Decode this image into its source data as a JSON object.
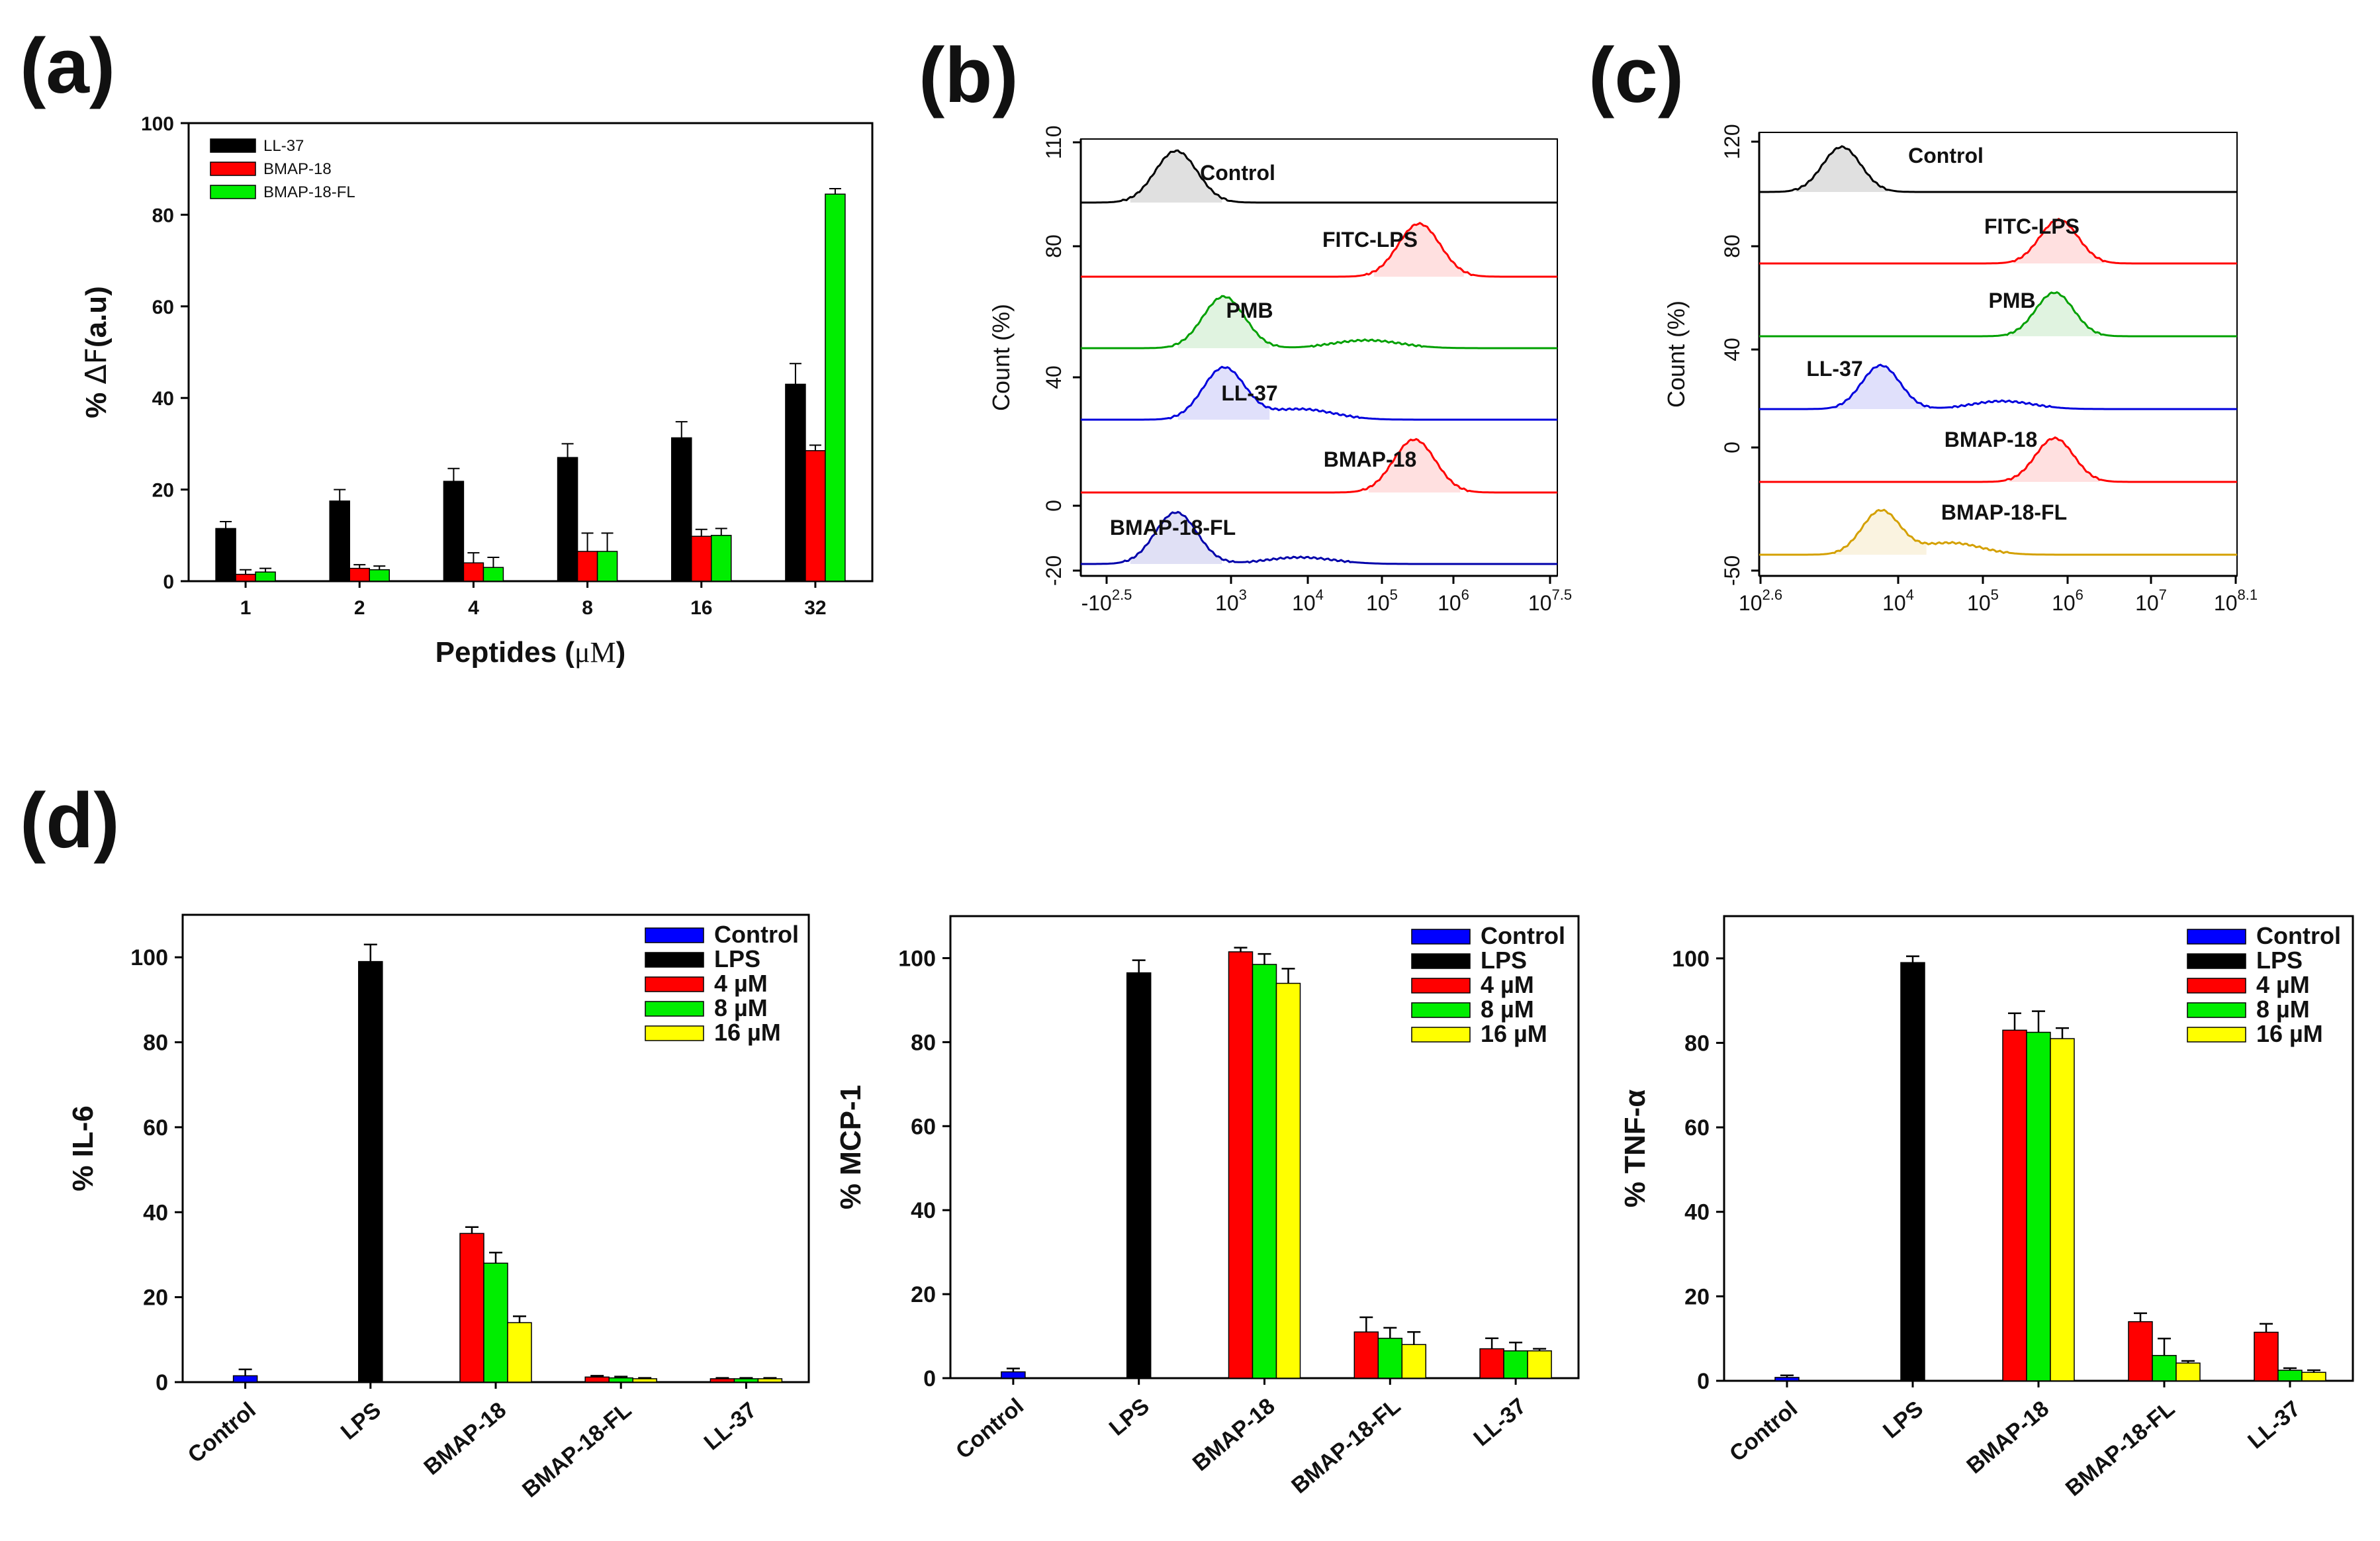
{
  "panel_labels": {
    "a": "(a)",
    "b": "(b)",
    "c": "(c)",
    "d": "(d)"
  },
  "chart_data": [
    {
      "panel": "(a)",
      "type": "bar",
      "xlabel_prefix": "Peptides (",
      "xlabel_mu": "μM",
      "xlabel_suffix": ")",
      "ylabel_prefix": "% ",
      "ylabel_delta": "ΔF",
      "ylabel_suffix": "(a.u)",
      "ylim": [
        0,
        100
      ],
      "yticks": [
        "0",
        "20",
        "40",
        "60",
        "80",
        "100"
      ],
      "categories": [
        "1",
        "2",
        "4",
        "8",
        "16",
        "32"
      ],
      "legend_position": "top-left",
      "series": [
        {
          "name": "LL-37",
          "color": "#000000",
          "values": [
            11.5,
            17.5,
            21.8,
            27,
            31.3,
            43
          ],
          "errors": [
            1.5,
            2.5,
            2.8,
            3,
            3.5,
            4.5
          ]
        },
        {
          "name": "BMAP-18",
          "color": "#ff0000",
          "values": [
            1.5,
            2.8,
            4.0,
            6.5,
            9.8,
            28.5
          ],
          "errors": [
            1.0,
            0.8,
            2.2,
            4.0,
            1.5,
            1.2
          ]
        },
        {
          "name": "BMAP-18-FL",
          "color": "#00ee00",
          "values": [
            2.0,
            2.5,
            3.0,
            6.5,
            10.0,
            84.5
          ],
          "errors": [
            0.8,
            0.8,
            2.2,
            4.0,
            1.5,
            1.2
          ]
        }
      ]
    },
    {
      "panel": "(b)",
      "type": "histogram",
      "ylabel": "Count  (%)",
      "yticks": [
        "-20",
        "0",
        "40",
        "80",
        "110"
      ],
      "xticks": [
        {
          "base": "-10",
          "exp": "2.5"
        },
        {
          "base": "10",
          "exp": "3"
        },
        {
          "base": "10",
          "exp": "4"
        },
        {
          "base": "10",
          "exp": "5"
        },
        {
          "base": "10",
          "exp": "6"
        },
        {
          "base": "10",
          "exp": "7.5"
        }
      ],
      "traces": [
        {
          "label": "Control",
          "color": "#000000",
          "peak_log_x": 3.5
        },
        {
          "label": "FITC-LPS",
          "color": "#ff0000",
          "peak_log_x": 6.05
        },
        {
          "label": "PMB",
          "color": "#00a000",
          "peak_log_x": 4.0
        },
        {
          "label": "LL-37",
          "color": "#0000dd",
          "peak_log_x": 4.0
        },
        {
          "label": "BMAP-18",
          "color": "#ff0000",
          "peak_log_x": 6.0
        },
        {
          "label": "BMAP-18-FL",
          "color": "#0000aa",
          "peak_log_x": 3.5
        }
      ]
    },
    {
      "panel": "(c)",
      "type": "histogram",
      "ylabel": "Count  (%)",
      "yticks": [
        "-50",
        "0",
        "40",
        "80",
        "120"
      ],
      "xticks": [
        {
          "base": "10",
          "exp": "2.6"
        },
        {
          "base": "10",
          "exp": "4"
        },
        {
          "base": "10",
          "exp": "5"
        },
        {
          "base": "10",
          "exp": "6"
        },
        {
          "base": "10",
          "exp": "7"
        },
        {
          "base": "10",
          "exp": "8.1"
        }
      ],
      "traces": [
        {
          "label": "Control",
          "color": "#000000",
          "peak_log_x": 3.55
        },
        {
          "label": "FITC-LPS",
          "color": "#ff0000",
          "peak_log_x": 6.05
        },
        {
          "label": "PMB",
          "color": "#00a000",
          "peak_log_x": 6.0
        },
        {
          "label": "LL-37",
          "color": "#0000dd",
          "peak_log_x": 4.0
        },
        {
          "label": "BMAP-18",
          "color": "#ff0000",
          "peak_log_x": 6.0
        },
        {
          "label": "BMAP-18-FL",
          "color": "#d4a000",
          "peak_log_x": 4.0
        }
      ]
    },
    {
      "panel": "(d)",
      "type": "bar",
      "ylabel": "% IL-6",
      "ylim": [
        0,
        110
      ],
      "yticks": [
        "0",
        "20",
        "40",
        "60",
        "80",
        "100"
      ],
      "categories": [
        "Control",
        "LPS",
        "BMAP-18",
        "BMAP-18-FL",
        "LL-37"
      ],
      "legend_position": "top-right",
      "legend": [
        "Control",
        "LPS",
        "4 µM",
        "8 µM",
        "16 µM"
      ],
      "colors": {
        "Control": "#0000ff",
        "LPS": "#000000",
        "4 µM": "#ff0000",
        "8 µM": "#00ee00",
        "16 µM": "#ffff00"
      },
      "bars": [
        {
          "category": "Control",
          "series": "Control",
          "value": 1.5,
          "error": 1.5
        },
        {
          "category": "LPS",
          "series": "LPS",
          "value": 99,
          "error": 4
        },
        {
          "category": "BMAP-18",
          "series": "4 µM",
          "value": 35,
          "error": 1.5
        },
        {
          "category": "BMAP-18",
          "series": "8 µM",
          "value": 28,
          "error": 2.5
        },
        {
          "category": "BMAP-18",
          "series": "16 µM",
          "value": 14,
          "error": 1.5
        },
        {
          "category": "BMAP-18-FL",
          "series": "4 µM",
          "value": 1.2,
          "error": 0.3
        },
        {
          "category": "BMAP-18-FL",
          "series": "8 µM",
          "value": 1.0,
          "error": 0.3
        },
        {
          "category": "BMAP-18-FL",
          "series": "16 µM",
          "value": 0.8,
          "error": 0.2
        },
        {
          "category": "LL-37",
          "series": "4 µM",
          "value": 0.8,
          "error": 0.2
        },
        {
          "category": "LL-37",
          "series": "8 µM",
          "value": 0.8,
          "error": 0.2
        },
        {
          "category": "LL-37",
          "series": "16 µM",
          "value": 0.8,
          "error": 0.2
        }
      ]
    },
    {
      "panel": "(d)",
      "type": "bar",
      "ylabel": "% MCP-1",
      "ylim": [
        0,
        110
      ],
      "yticks": [
        "0",
        "20",
        "40",
        "60",
        "80",
        "100"
      ],
      "categories": [
        "Control",
        "LPS",
        "BMAP-18",
        "BMAP-18-FL",
        "LL-37"
      ],
      "legend_position": "top-right",
      "legend": [
        "Control",
        "LPS",
        "4 µM",
        "8 µM",
        "16 µM"
      ],
      "colors": {
        "Control": "#0000ff",
        "LPS": "#000000",
        "4 µM": "#ff0000",
        "8 µM": "#00ee00",
        "16 µM": "#ffff00"
      },
      "bars": [
        {
          "category": "Control",
          "series": "Control",
          "value": 1.5,
          "error": 0.8
        },
        {
          "category": "LPS",
          "series": "LPS",
          "value": 96.5,
          "error": 3
        },
        {
          "category": "BMAP-18",
          "series": "4 µM",
          "value": 101.5,
          "error": 1
        },
        {
          "category": "BMAP-18",
          "series": "8 µM",
          "value": 98.5,
          "error": 2.5
        },
        {
          "category": "BMAP-18",
          "series": "16 µM",
          "value": 94,
          "error": 3.5
        },
        {
          "category": "BMAP-18-FL",
          "series": "4 µM",
          "value": 11,
          "error": 3.5
        },
        {
          "category": "BMAP-18-FL",
          "series": "8 µM",
          "value": 9.5,
          "error": 2.5
        },
        {
          "category": "BMAP-18-FL",
          "series": "16 µM",
          "value": 8,
          "error": 3
        },
        {
          "category": "LL-37",
          "series": "4 µM",
          "value": 7,
          "error": 2.5
        },
        {
          "category": "LL-37",
          "series": "8 µM",
          "value": 6.5,
          "error": 2
        },
        {
          "category": "LL-37",
          "series": "16 µM",
          "value": 6.5,
          "error": 0.5
        }
      ]
    },
    {
      "panel": "(d)",
      "type": "bar",
      "ylabel": "% TNF-α",
      "ylim": [
        0,
        110
      ],
      "yticks": [
        "0",
        "20",
        "40",
        "60",
        "80",
        "100"
      ],
      "categories": [
        "Control",
        "LPS",
        "BMAP-18",
        "BMAP-18-FL",
        "LL-37"
      ],
      "legend_position": "top-right",
      "legend": [
        "Control",
        "LPS",
        "4 µM",
        "8 µM",
        "16 µM"
      ],
      "colors": {
        "Control": "#0000ff",
        "LPS": "#000000",
        "4 µM": "#ff0000",
        "8 µM": "#00ee00",
        "16 µM": "#ffff00"
      },
      "bars": [
        {
          "category": "Control",
          "series": "Control",
          "value": 0.8,
          "error": 0.5
        },
        {
          "category": "LPS",
          "series": "LPS",
          "value": 99,
          "error": 1.5
        },
        {
          "category": "BMAP-18",
          "series": "4 µM",
          "value": 83,
          "error": 4
        },
        {
          "category": "BMAP-18",
          "series": "8 µM",
          "value": 82.5,
          "error": 5
        },
        {
          "category": "BMAP-18",
          "series": "16 µM",
          "value": 81,
          "error": 2.5
        },
        {
          "category": "BMAP-18-FL",
          "series": "4 µM",
          "value": 14,
          "error": 2
        },
        {
          "category": "BMAP-18-FL",
          "series": "8 µM",
          "value": 6,
          "error": 4
        },
        {
          "category": "BMAP-18-FL",
          "series": "16 µM",
          "value": 4.2,
          "error": 0.5
        },
        {
          "category": "LL-37",
          "series": "4 µM",
          "value": 11.5,
          "error": 2
        },
        {
          "category": "LL-37",
          "series": "8 µM",
          "value": 2.5,
          "error": 0.5
        },
        {
          "category": "LL-37",
          "series": "16 µM",
          "value": 2,
          "error": 0.5
        }
      ]
    }
  ]
}
